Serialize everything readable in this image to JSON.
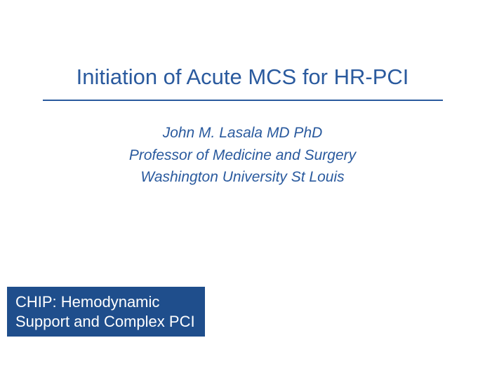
{
  "slide": {
    "title": "Initiation of Acute MCS for HR-PCI",
    "title_color": "#2a5a9e",
    "title_fontsize": 31,
    "divider_color": "#2a5a9e",
    "background_color": "#ffffff",
    "subtitle": {
      "lines": [
        "John M. Lasala MD PhD",
        "Professor of Medicine and Surgery",
        "Washington University St Louis"
      ],
      "color": "#2a5a9e",
      "fontsize": 21,
      "font_style": "italic"
    },
    "footer_badge": {
      "lines": [
        "CHIP: Hemodynamic",
        "Support and Complex PCI"
      ],
      "background_color": "#1f4e8c",
      "text_color": "#ffffff",
      "fontsize": 22
    }
  }
}
